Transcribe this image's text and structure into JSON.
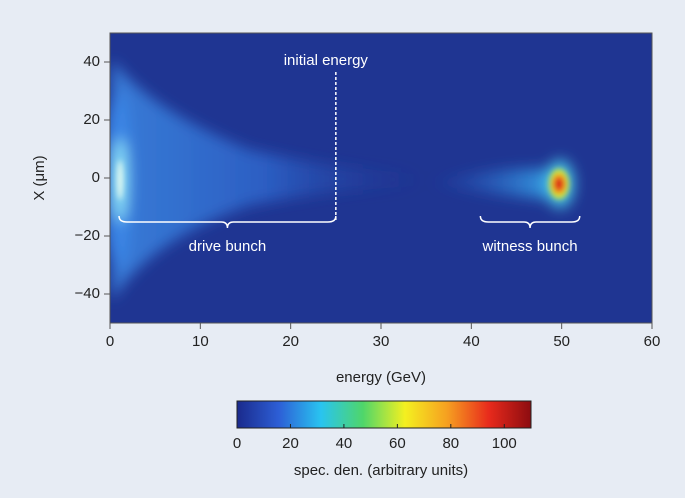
{
  "chart_data": {
    "type": "heatmap",
    "x_label": "energy (GeV)",
    "y_label": "X (μm)",
    "xlim": [
      0,
      60
    ],
    "xticks": [
      0,
      10,
      20,
      30,
      40,
      50,
      60
    ],
    "ylim": [
      -50,
      50
    ],
    "yticks": [
      {
        "value": -40,
        "label": "−40"
      },
      {
        "value": -20,
        "label": "−20"
      },
      0,
      20,
      40
    ],
    "annotations": {
      "initial_energy": "initial energy",
      "drive_bunch": "drive bunch",
      "witness_bunch": "witness bunch"
    },
    "colorbar": {
      "label": "spec. den. (arbitrary units)",
      "lim": [
        0,
        110
      ],
      "ticks": [
        0,
        20,
        40,
        60,
        80,
        100
      ],
      "colors": [
        "#1a2a8c",
        "#2d5fd6",
        "#29c4f0",
        "#4fd66a",
        "#f4f020",
        "#f6a020",
        "#e82a1c",
        "#8c0c10"
      ]
    }
  }
}
